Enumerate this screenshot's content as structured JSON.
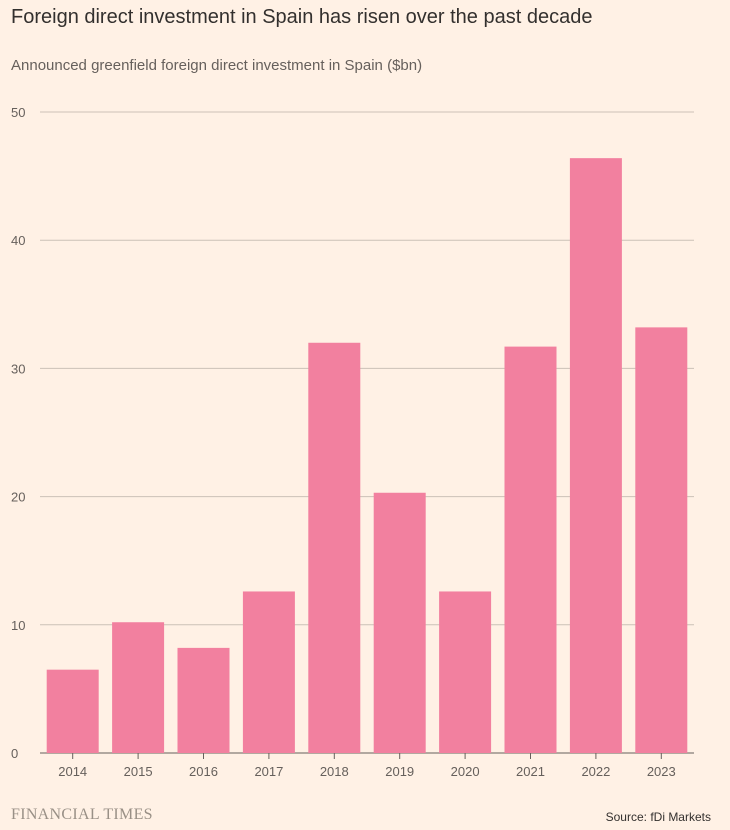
{
  "title": "Foreign direct investment in Spain has risen over the past decade",
  "subtitle": "Announced greenfield foreign direct investment in Spain ($bn)",
  "brand": "FINANCIAL TIMES",
  "source": "Source: fDi Markets",
  "colors": {
    "background": "#fff1e5",
    "bar": "#f2809f",
    "grid": "#ccc1b7",
    "axis": "#66605c"
  },
  "chart_data": {
    "type": "bar",
    "categories": [
      "2014",
      "2015",
      "2016",
      "2017",
      "2018",
      "2019",
      "2020",
      "2021",
      "2022",
      "2023"
    ],
    "values": [
      6.5,
      10.2,
      8.2,
      12.6,
      32.0,
      20.3,
      12.6,
      31.7,
      46.4,
      33.2
    ],
    "y_ticks": [
      0,
      10,
      20,
      30,
      40,
      50
    ],
    "ylim": [
      0,
      50
    ],
    "xlabel": "",
    "ylabel": "",
    "grid": true,
    "legend": "none"
  }
}
